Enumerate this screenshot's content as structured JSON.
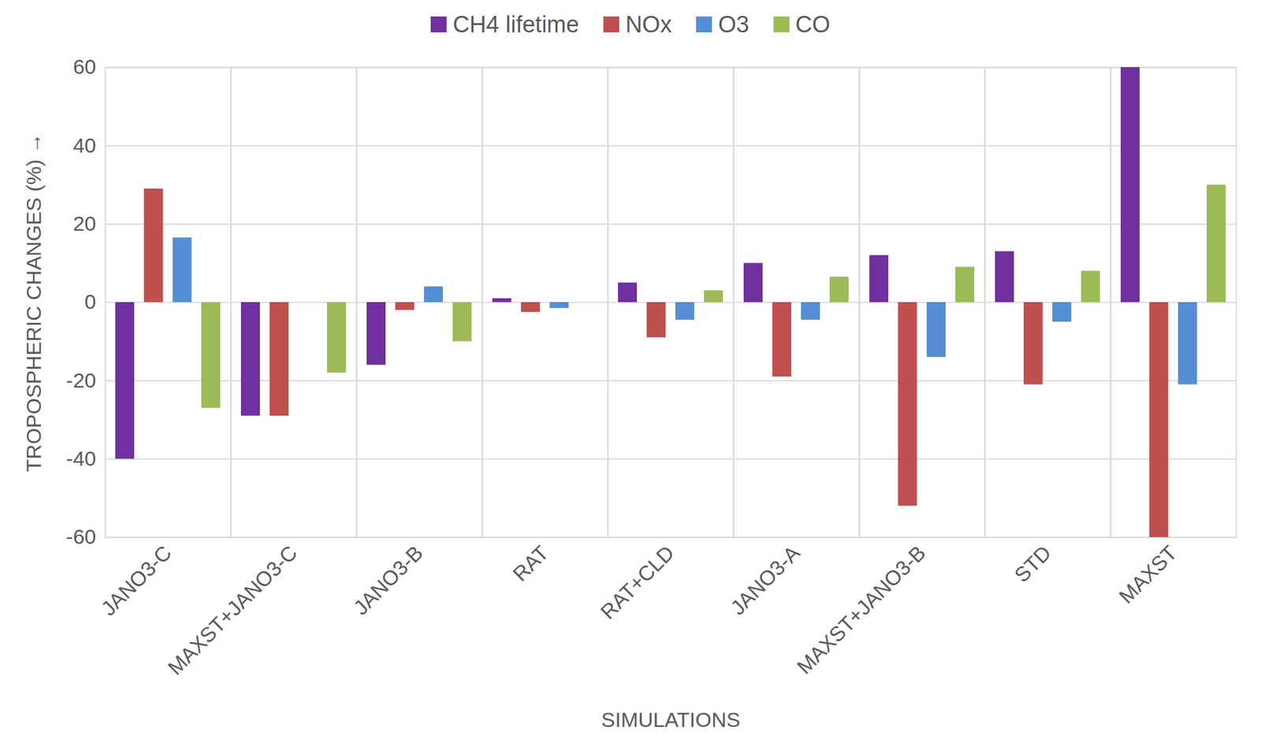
{
  "chart_data": {
    "type": "bar",
    "categories": [
      "JANO3-C",
      "MAXST+JANO3-C",
      "JANO3-B",
      "RAT",
      "RAT+CLD",
      "JANO3-A",
      "MAXST+JANO3-B",
      "STD",
      "MAXST"
    ],
    "series": [
      {
        "name": "CH4 lifetime",
        "color": "#7030a0",
        "values": [
          -40,
          -29,
          -16,
          1,
          5,
          10,
          12,
          13,
          60
        ]
      },
      {
        "name": "NOx",
        "color": "#c0504d",
        "values": [
          29,
          -29,
          -2,
          -2.5,
          -9,
          -19,
          -52,
          -21,
          -60
        ]
      },
      {
        "name": "O3",
        "color": "#558ed5",
        "values": [
          16.5,
          0,
          4,
          -1.5,
          -4.5,
          -4.5,
          -14,
          -5,
          -21
        ]
      },
      {
        "name": "CO",
        "color": "#9bbb59",
        "values": [
          -27,
          -18,
          -10,
          0,
          3,
          6.5,
          9,
          8,
          30
        ]
      }
    ],
    "x_label": "SIMULATIONS",
    "y_label": "TROPOSPHERIC CHANGES (%)",
    "ylim": [
      -60,
      60
    ],
    "yticks": [
      -60,
      -40,
      -20,
      0,
      20,
      40,
      60
    ],
    "grid": true,
    "legend": "top"
  }
}
